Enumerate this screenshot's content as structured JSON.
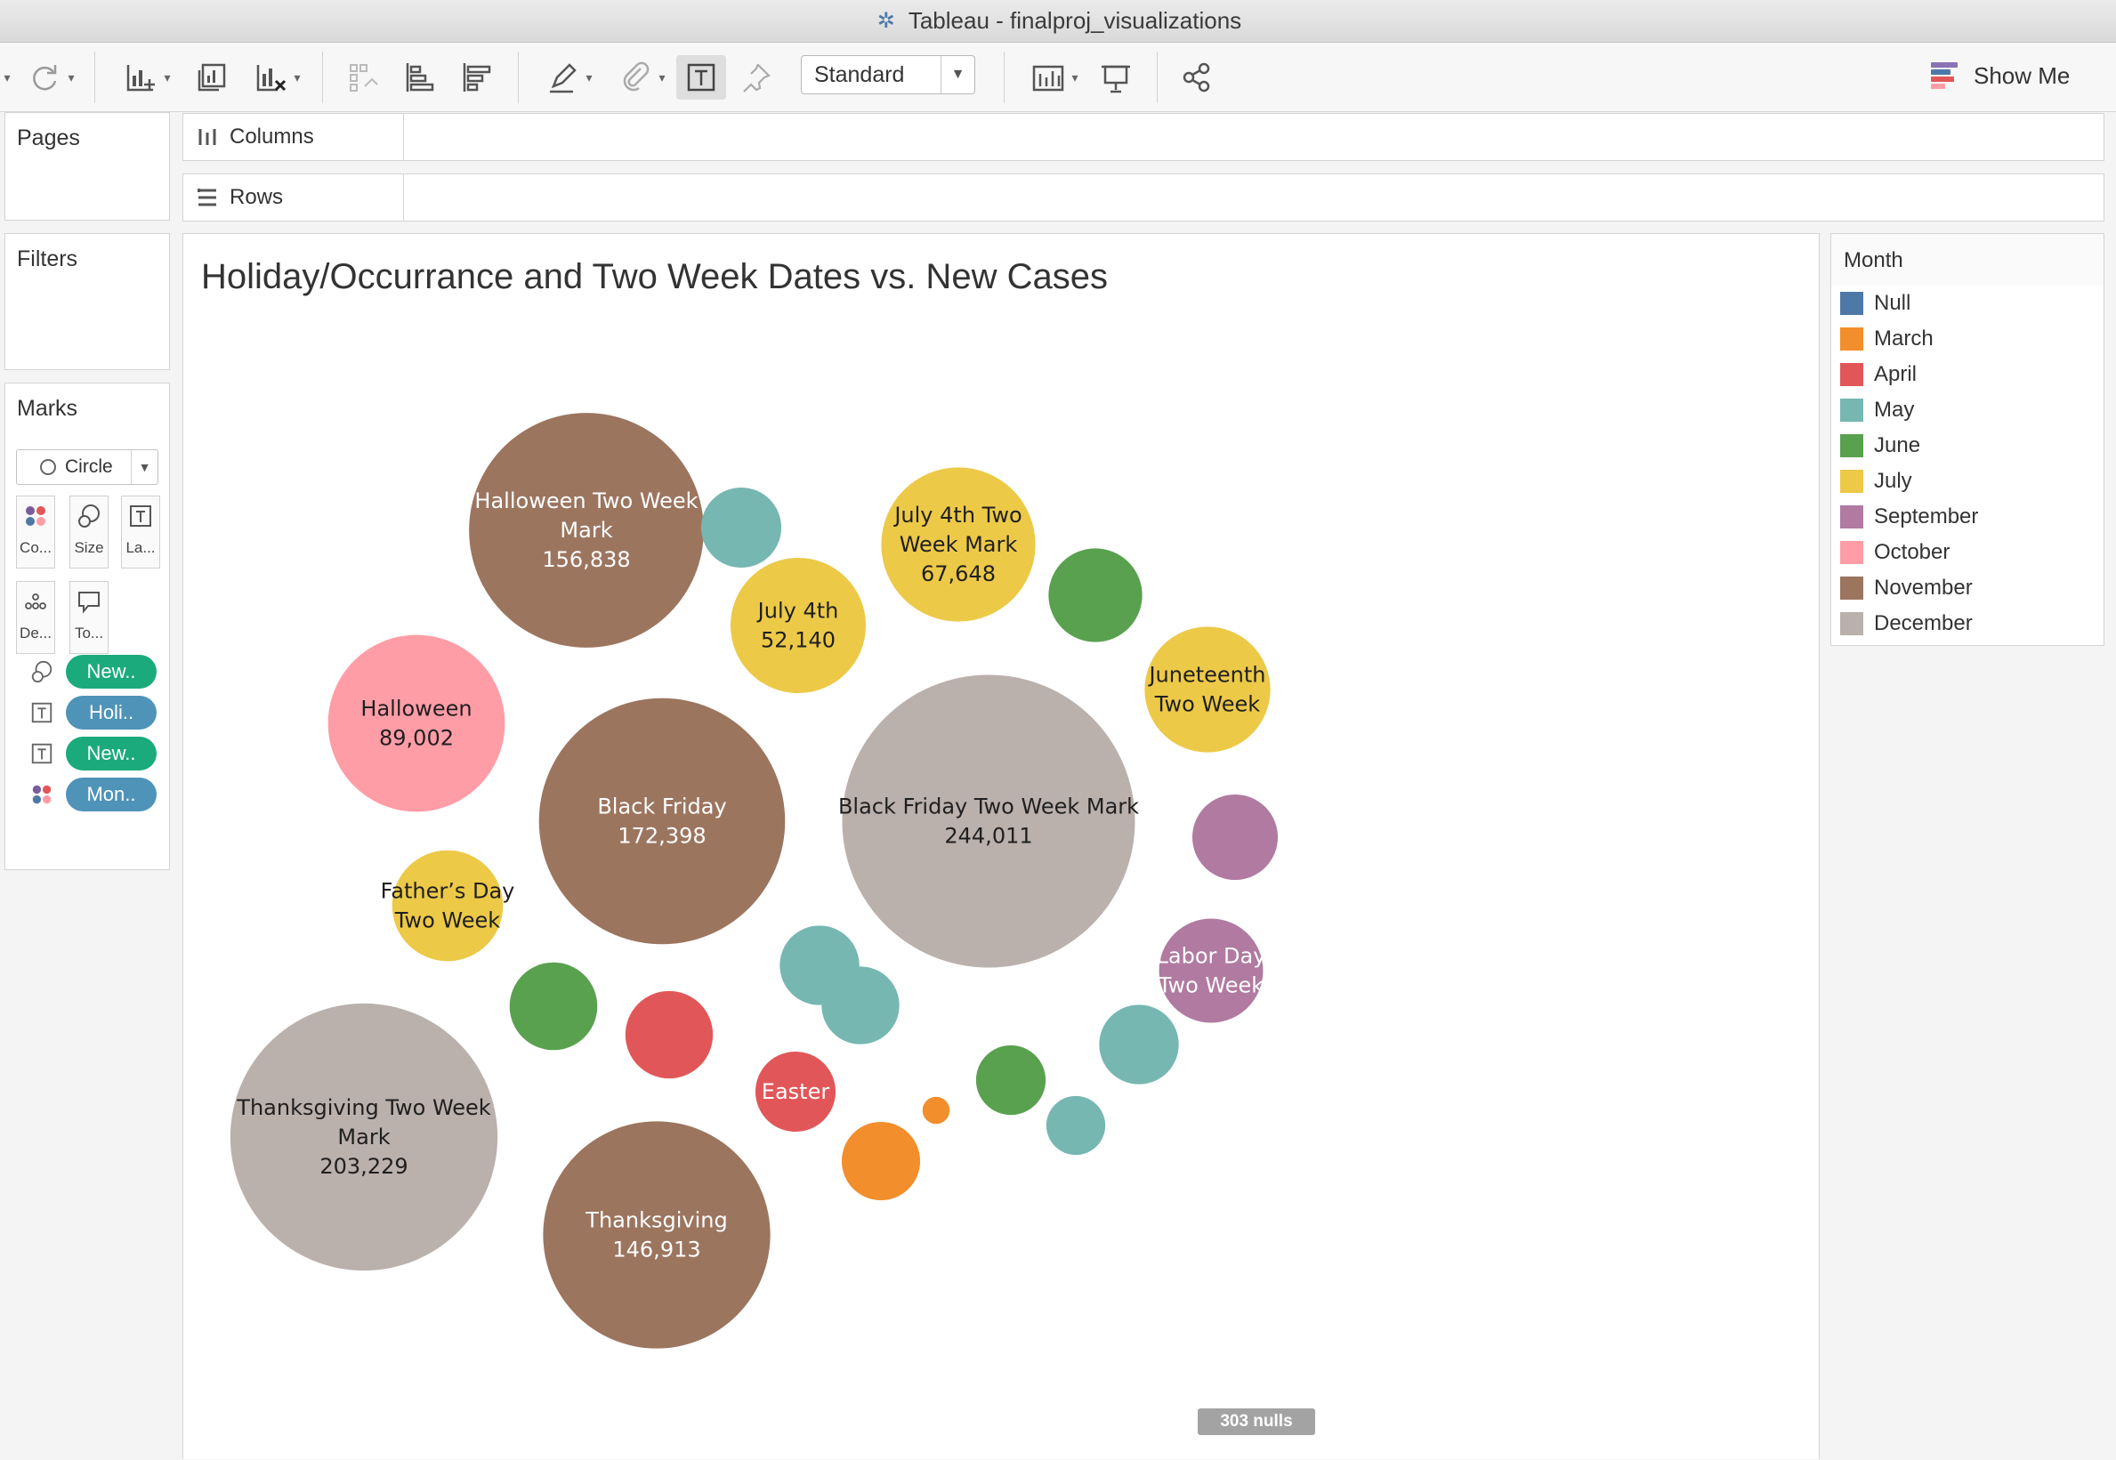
{
  "window": {
    "title": "Tableau - finalproj_visualizations"
  },
  "toolbar": {
    "mark_size_select": "Standard",
    "show_me": "Show Me"
  },
  "panes": {
    "pages": "Pages",
    "filters": "Filters",
    "marks": "Marks",
    "mark_type": "Circle",
    "cards": {
      "color": "Co...",
      "size": "Size",
      "label": "La...",
      "detail": "De...",
      "tooltip": "To..."
    },
    "pills": [
      "New..",
      "Holi..",
      "New..",
      "Mon.."
    ]
  },
  "shelves": {
    "columns": "Columns",
    "rows": "Rows"
  },
  "view": {
    "title": "Holiday/Occurrance and Two Week Dates vs. New Cases",
    "nulls_badge": "303 nulls"
  },
  "legend": {
    "title": "Month",
    "items": [
      {
        "label": "Null",
        "color": "#4e79a7"
      },
      {
        "label": "March",
        "color": "#f28e2b"
      },
      {
        "label": "April",
        "color": "#e15759"
      },
      {
        "label": "May",
        "color": "#76b7b2"
      },
      {
        "label": "June",
        "color": "#59a14f"
      },
      {
        "label": "July",
        "color": "#edc948"
      },
      {
        "label": "September",
        "color": "#b07aa1"
      },
      {
        "label": "October",
        "color": "#ff9da7"
      },
      {
        "label": "November",
        "color": "#9c755f"
      },
      {
        "label": "December",
        "color": "#bab0ac"
      }
    ]
  },
  "colors": {
    "green_pill": "#1baa7c",
    "blue_pill": "#4f93b8"
  },
  "chart_data": {
    "type": "packed-bubble",
    "size_measure": "New Cases",
    "color_dimension": "Month",
    "bubbles": [
      {
        "label_lines": [
          "Black Friday Two Week Mark"
        ],
        "value_label": "244,011",
        "value": 244011,
        "month": "December"
      },
      {
        "label_lines": [
          "Thanksgiving Two Week",
          "Mark"
        ],
        "value_label": "203,229",
        "value": 203229,
        "month": "December"
      },
      {
        "label_lines": [
          "Black Friday"
        ],
        "value_label": "172,398",
        "value": 172398,
        "month": "November"
      },
      {
        "label_lines": [
          "Halloween Two Week",
          "Mark"
        ],
        "value_label": "156,838",
        "value": 156838,
        "month": "November"
      },
      {
        "label_lines": [
          "Thanksgiving"
        ],
        "value_label": "146,913",
        "value": 146913,
        "month": "November"
      },
      {
        "label_lines": [
          "Halloween"
        ],
        "value_label": "89,002",
        "value": 89002,
        "month": "October"
      },
      {
        "label_lines": [
          "July 4th Two",
          "Week Mark"
        ],
        "value_label": "67,648",
        "value": 67648,
        "month": "July"
      },
      {
        "label_lines": [
          "July 4th"
        ],
        "value_label": "52,140",
        "value": 52140,
        "month": "July"
      },
      {
        "label_lines": [
          "Juneteenth",
          "Two Week"
        ],
        "value_label": "",
        "value": 45000,
        "month": "July"
      },
      {
        "label_lines": [
          "Father’s Day",
          "Two Week"
        ],
        "value_label": "",
        "value": 35000,
        "month": "July"
      },
      {
        "label_lines": [
          "Labor Day",
          "Two Week"
        ],
        "value_label": "",
        "value": 30800,
        "month": "September"
      },
      {
        "label_lines": [],
        "value_label": "",
        "value": 20800,
        "month": "September"
      },
      {
        "label_lines": [
          "Easter"
        ],
        "value_label": "",
        "value": 18300,
        "month": "April"
      },
      {
        "label_lines": [],
        "value_label": "",
        "value": 21800,
        "month": "April"
      },
      {
        "label_lines": [],
        "value_label": "",
        "value": 25000,
        "month": "June"
      },
      {
        "label_lines": [],
        "value_label": "",
        "value": 21900,
        "month": "June"
      },
      {
        "label_lines": [],
        "value_label": "",
        "value": 13800,
        "month": "June"
      },
      {
        "label_lines": [],
        "value_label": "",
        "value": 18000,
        "month": "May"
      },
      {
        "label_lines": [],
        "value_label": "",
        "value": 9900,
        "month": "May"
      },
      {
        "label_lines": [],
        "value_label": "",
        "value": 18000,
        "month": "May"
      },
      {
        "label_lines": [],
        "value_label": "",
        "value": 17200,
        "month": "May"
      },
      {
        "label_lines": [],
        "value_label": "",
        "value": 18300,
        "month": "May"
      },
      {
        "label_lines": [],
        "value_label": "",
        "value": 17500,
        "month": "March"
      },
      {
        "label_lines": [],
        "value_label": "",
        "value": 2100,
        "month": "March"
      }
    ]
  }
}
